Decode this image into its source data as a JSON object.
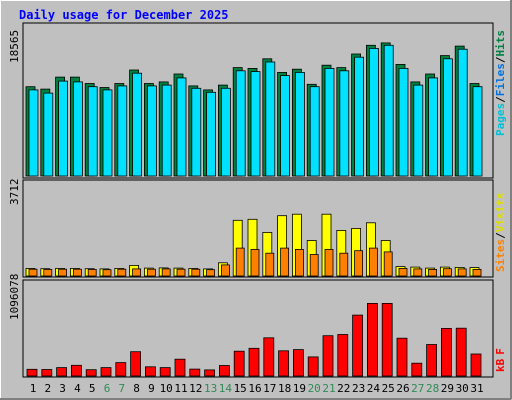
{
  "title": "Daily usage for December 2025",
  "colors": {
    "background": "#c0c0c0",
    "plot_bg": "#c0c0c0",
    "title_text": "#0000ff",
    "weekday_label": "#000000",
    "weekend_label": "#2e8b57",
    "hits": "#008040",
    "files": "#0080ff",
    "pages": "#00e0ff",
    "visits": "#ffff00",
    "sites": "#ff8000",
    "kbytes": "#ff0000"
  },
  "chart_data": [
    {
      "type": "bar",
      "name": "hits-files-pages",
      "ymax_label": "18565",
      "ymax": 18565,
      "legend": [
        "Pages",
        "/",
        "Files",
        "/",
        "Hits"
      ],
      "days": [
        "1",
        "2",
        "3",
        "4",
        "5",
        "6",
        "7",
        "8",
        "9",
        "10",
        "11",
        "12",
        "13",
        "14",
        "15",
        "16",
        "17",
        "18",
        "19",
        "20",
        "21",
        "22",
        "23",
        "24",
        "25",
        "26",
        "27",
        "28",
        "29",
        "30",
        "31"
      ],
      "weekend_days": [
        "6",
        "7",
        "13",
        "14",
        "20",
        "21",
        "27",
        "28"
      ],
      "series": [
        {
          "name": "Hits",
          "values": [
            11200,
            10900,
            12400,
            12400,
            11600,
            11100,
            11600,
            13300,
            11600,
            11800,
            12800,
            11300,
            10800,
            11400,
            13600,
            13500,
            14700,
            13000,
            13400,
            11500,
            13900,
            13600,
            15300,
            16400,
            16700,
            14000,
            11800,
            12800,
            15100,
            16300,
            11600
          ]
        },
        {
          "name": "Files",
          "values": [
            10800,
            10400,
            11900,
            11800,
            11200,
            10800,
            11300,
            12900,
            11300,
            11400,
            12300,
            11000,
            10500,
            11000,
            13200,
            13100,
            14300,
            12600,
            13000,
            11200,
            13500,
            13200,
            14900,
            16000,
            16400,
            13500,
            11400,
            12300,
            14700,
            15900,
            11200
          ]
        }
      ]
    },
    {
      "type": "bar",
      "name": "visits-sites",
      "ymax_label": "3712",
      "ymax": 3712,
      "legend": [
        "Sites",
        "/",
        "Visits"
      ],
      "days": [
        "1",
        "2",
        "3",
        "4",
        "5",
        "6",
        "7",
        "8",
        "9",
        "10",
        "11",
        "12",
        "13",
        "14",
        "15",
        "16",
        "17",
        "18",
        "19",
        "20",
        "21",
        "22",
        "23",
        "24",
        "25",
        "26",
        "27",
        "28",
        "29",
        "30",
        "31"
      ],
      "series": [
        {
          "name": "Visits",
          "values": [
            300,
            290,
            300,
            300,
            290,
            280,
            300,
            420,
            310,
            320,
            310,
            300,
            280,
            520,
            2200,
            2240,
            1720,
            2380,
            2440,
            1400,
            2440,
            1800,
            1880,
            2100,
            1400,
            370,
            350,
            310,
            350,
            340,
            330
          ]
        },
        {
          "name": "Sites",
          "values": [
            270,
            260,
            270,
            270,
            260,
            250,
            270,
            280,
            270,
            280,
            270,
            270,
            250,
            440,
            1100,
            1050,
            900,
            1100,
            1050,
            850,
            1050,
            900,
            1000,
            1100,
            950,
            300,
            280,
            260,
            290,
            280,
            260
          ]
        }
      ]
    },
    {
      "type": "bar",
      "name": "kbytes",
      "ymax_label": "1096078",
      "ymax": 1096078,
      "legend": [
        "kB",
        "F"
      ],
      "days": [
        "1",
        "2",
        "3",
        "4",
        "5",
        "6",
        "7",
        "8",
        "9",
        "10",
        "11",
        "12",
        "13",
        "14",
        "15",
        "16",
        "17",
        "18",
        "19",
        "20",
        "21",
        "22",
        "23",
        "24",
        "25",
        "26",
        "27",
        "28",
        "29",
        "30",
        "31"
      ],
      "series": [
        {
          "name": "kB F",
          "values": [
            80000,
            77000,
            100000,
            128000,
            75000,
            100000,
            160000,
            290000,
            110000,
            100000,
            200000,
            82000,
            73000,
            125000,
            295000,
            330000,
            455000,
            300000,
            315000,
            228000,
            480000,
            495000,
            725000,
            865000,
            865000,
            450000,
            152000,
            375000,
            567000,
            570000,
            262000
          ]
        }
      ]
    }
  ]
}
